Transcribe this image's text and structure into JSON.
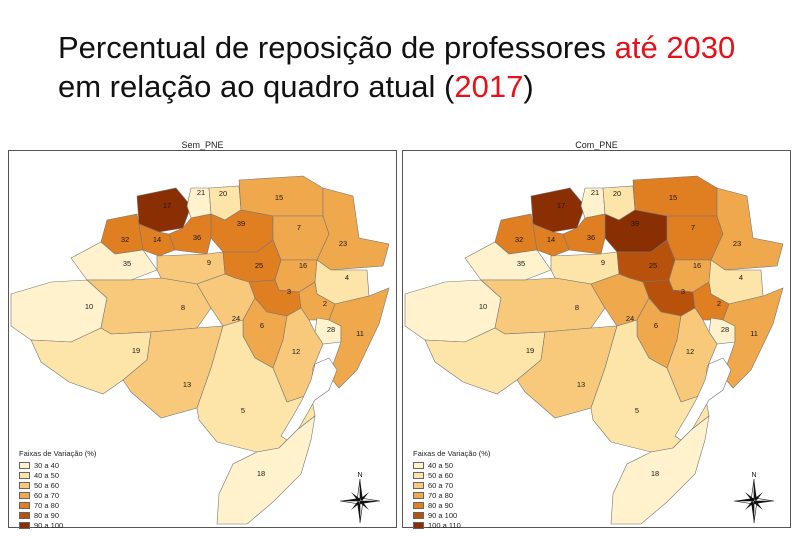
{
  "title": {
    "line1_a": "Percentual de reposição de professores ",
    "line1_b": "até 2030",
    "line2_a": "em relação ao quadro atual (",
    "line2_b": "2017",
    "line2_c": ")"
  },
  "colors": {
    "accent": "#e8111a",
    "c1": "#fff2cc",
    "c2": "#fde4a8",
    "c3": "#f8c97a",
    "c4": "#f0a84c",
    "c5": "#e07e22",
    "c6": "#b8510c",
    "c7": "#8a2e04",
    "border": "#777777",
    "water": "#ffffff"
  },
  "compass_label": "N",
  "maps": [
    {
      "title": "Sem_PNE",
      "legend_title": "Faixas de Variação (%)",
      "legend": [
        {
          "label": "30 a 40",
          "color": "#fff2cc"
        },
        {
          "label": "40 a 50",
          "color": "#fde4a8"
        },
        {
          "label": "50 a 60",
          "color": "#f8c97a"
        },
        {
          "label": "60 a 70",
          "color": "#f0a84c"
        },
        {
          "label": "70 a 80",
          "color": "#e07e22"
        },
        {
          "label": "80 a 90",
          "color": "#b8510c"
        },
        {
          "label": "90 a 100",
          "color": "#8a2e04"
        }
      ],
      "regions": [
        {
          "id": "17",
          "class": 7
        },
        {
          "id": "21",
          "class": 1
        },
        {
          "id": "20",
          "class": 2
        },
        {
          "id": "15",
          "class": 4
        },
        {
          "id": "39",
          "class": 5
        },
        {
          "id": "7",
          "class": 4
        },
        {
          "id": "23",
          "class": 4
        },
        {
          "id": "32",
          "class": 5
        },
        {
          "id": "14",
          "class": 5
        },
        {
          "id": "36",
          "class": 5
        },
        {
          "id": "35",
          "class": 1
        },
        {
          "id": "9",
          "class": 3
        },
        {
          "id": "25",
          "class": 5
        },
        {
          "id": "16",
          "class": 4
        },
        {
          "id": "4",
          "class": 2
        },
        {
          "id": "10",
          "class": 1
        },
        {
          "id": "8",
          "class": 3
        },
        {
          "id": "3",
          "class": 5
        },
        {
          "id": "2",
          "class": 4
        },
        {
          "id": "24",
          "class": 3
        },
        {
          "id": "6",
          "class": 4
        },
        {
          "id": "28",
          "class": 1
        },
        {
          "id": "11",
          "class": 4
        },
        {
          "id": "19",
          "class": 2
        },
        {
          "id": "12",
          "class": 3
        },
        {
          "id": "13",
          "class": 3
        },
        {
          "id": "5",
          "class": 2
        },
        {
          "id": "18",
          "class": 1
        }
      ]
    },
    {
      "title": "Com_PNE",
      "legend_title": "Faixas de Variação (%)",
      "legend": [
        {
          "label": "40 a 50",
          "color": "#fff2cc"
        },
        {
          "label": "50 a 60",
          "color": "#fde4a8"
        },
        {
          "label": "60 a 70",
          "color": "#f8c97a"
        },
        {
          "label": "70 a 80",
          "color": "#f0a84c"
        },
        {
          "label": "80 a 90",
          "color": "#e07e22"
        },
        {
          "label": "90 a 100",
          "color": "#b8510c"
        },
        {
          "label": "100 a 110",
          "color": "#8a2e04"
        }
      ],
      "regions": [
        {
          "id": "17",
          "class": 7
        },
        {
          "id": "21",
          "class": 1
        },
        {
          "id": "20",
          "class": 2
        },
        {
          "id": "15",
          "class": 5
        },
        {
          "id": "39",
          "class": 7
        },
        {
          "id": "7",
          "class": 5
        },
        {
          "id": "23",
          "class": 4
        },
        {
          "id": "32",
          "class": 5
        },
        {
          "id": "14",
          "class": 5
        },
        {
          "id": "36",
          "class": 5
        },
        {
          "id": "35",
          "class": 1
        },
        {
          "id": "9",
          "class": 2
        },
        {
          "id": "25",
          "class": 6
        },
        {
          "id": "16",
          "class": 4
        },
        {
          "id": "4",
          "class": 2
        },
        {
          "id": "10",
          "class": 1
        },
        {
          "id": "8",
          "class": 3
        },
        {
          "id": "3",
          "class": 6
        },
        {
          "id": "2",
          "class": 5
        },
        {
          "id": "24",
          "class": 4
        },
        {
          "id": "6",
          "class": 4
        },
        {
          "id": "28",
          "class": 1
        },
        {
          "id": "11",
          "class": 4
        },
        {
          "id": "19",
          "class": 2
        },
        {
          "id": "12",
          "class": 3
        },
        {
          "id": "13",
          "class": 3
        },
        {
          "id": "5",
          "class": 2
        },
        {
          "id": "18",
          "class": 1
        }
      ]
    }
  ]
}
